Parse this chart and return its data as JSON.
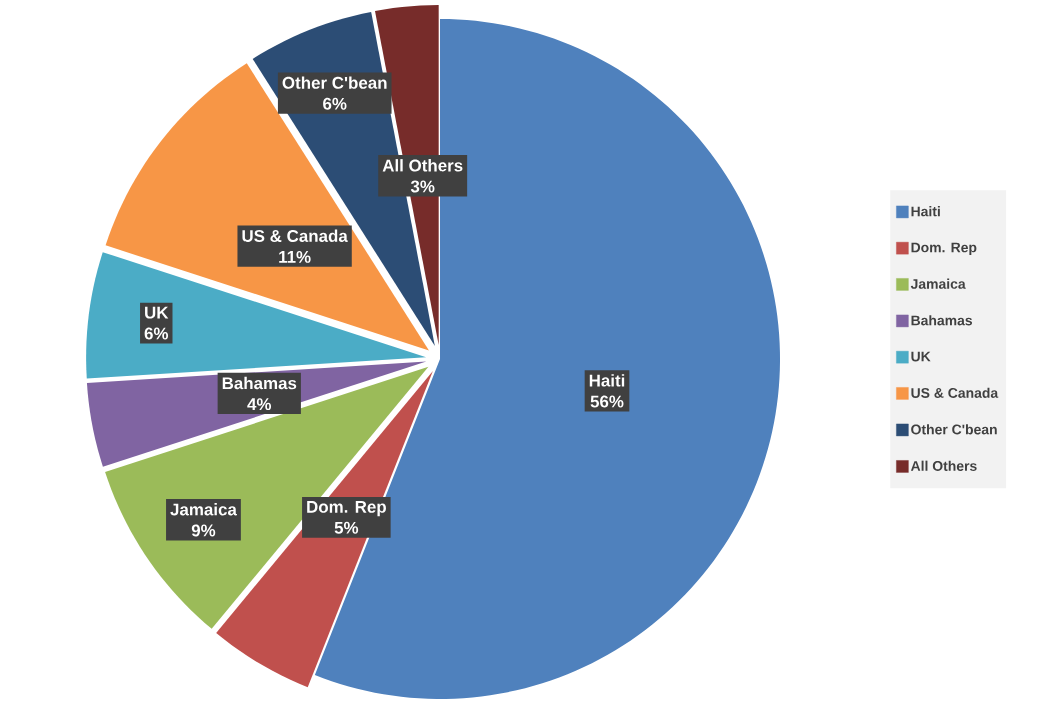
{
  "chart_data": {
    "type": "pie",
    "categories": [
      "Haiti",
      "Dom. Rep",
      "Jamaica",
      "Bahamas",
      "UK",
      "US & Canada",
      "Other C'bean",
      "All Others"
    ],
    "values": [
      56,
      5,
      9,
      4,
      6,
      11,
      6,
      3
    ],
    "value_labels": [
      "56%",
      "5%",
      "9%",
      "4%",
      "6%",
      "11%",
      "6%",
      "3%"
    ],
    "colors": [
      "#4f81bd",
      "#c0504d",
      "#9bbb59",
      "#8064a2",
      "#4bacc6",
      "#f79646",
      "#2c4d75",
      "#772c2a"
    ],
    "legend": "right"
  }
}
